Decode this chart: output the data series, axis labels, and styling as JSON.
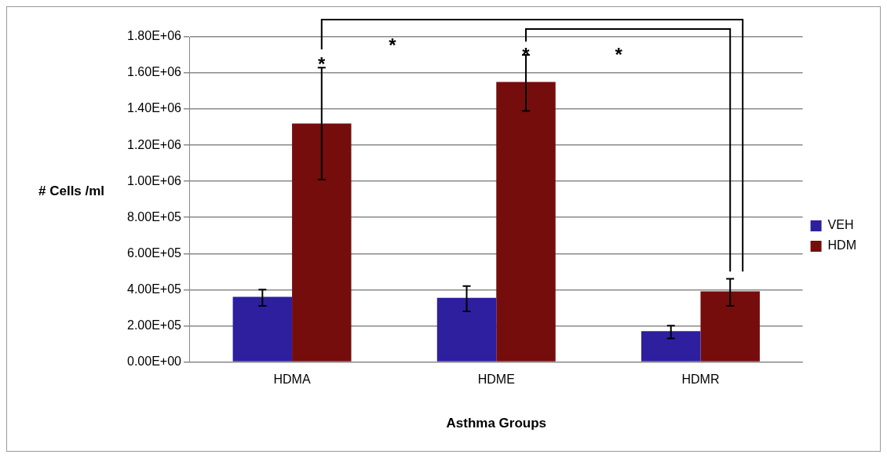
{
  "chart_data": {
    "type": "bar",
    "xlabel": "Asthma Groups",
    "ylabel": "# Cells /ml",
    "categories": [
      "HDMA",
      "HDME",
      "HDMR"
    ],
    "series": [
      {
        "name": "VEH",
        "color": "#2e1f9e",
        "values": [
          360000,
          355000,
          170000
        ],
        "errors": [
          [
            310000,
            400000
          ],
          [
            280000,
            420000
          ],
          [
            130000,
            200000
          ]
        ]
      },
      {
        "name": "HDM",
        "color": "#750d0d",
        "values": [
          1320000,
          1550000,
          390000
        ],
        "errors": [
          [
            1010000,
            1630000
          ],
          [
            1390000,
            1700000
          ],
          [
            310000,
            460000
          ]
        ]
      }
    ],
    "ylim": [
      0,
      1800000
    ],
    "yticks": [
      {
        "value": 0,
        "label": "0.00E+00"
      },
      {
        "value": 200000,
        "label": "2.00E+05"
      },
      {
        "value": 400000,
        "label": "4.00E+05"
      },
      {
        "value": 600000,
        "label": "6.00E+05"
      },
      {
        "value": 800000,
        "label": "8.00E+05"
      },
      {
        "value": 1000000,
        "label": "1.00E+06"
      },
      {
        "value": 1200000,
        "label": "1.20E+06"
      },
      {
        "value": 1400000,
        "label": "1.40E+06"
      },
      {
        "value": 1600000,
        "label": "1.60E+06"
      },
      {
        "value": 1800000,
        "label": "1.80E+06"
      }
    ],
    "annotations": [
      "*",
      "*",
      "*",
      "*"
    ],
    "grid": "y",
    "legend": "right"
  }
}
